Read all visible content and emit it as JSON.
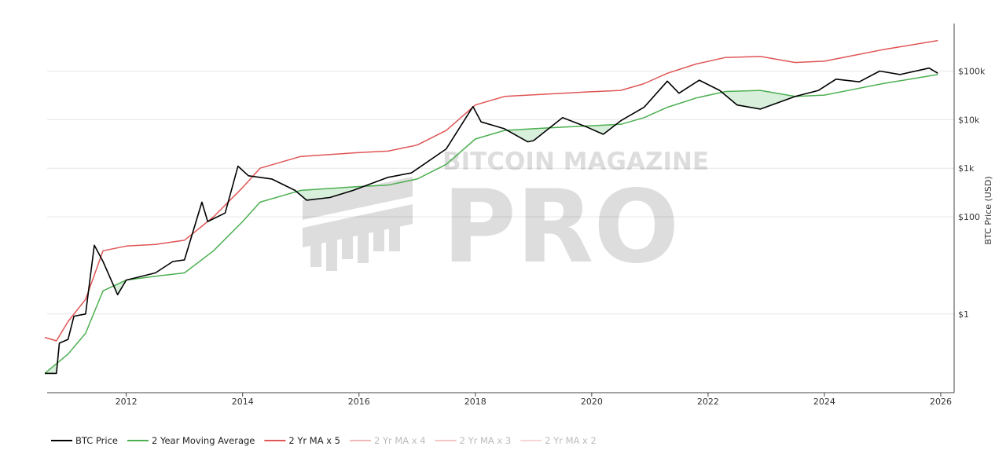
{
  "watermark": {
    "line1": "BITCOIN MAGAZINE",
    "line2": "PRO"
  },
  "chart_data": {
    "type": "line",
    "title": "",
    "xlabel": "",
    "ylabel": "BTC Price (USD)",
    "yscale": "log",
    "xlim": [
      2010.64,
      2026.23
    ],
    "ylim": [
      0.024,
      950000
    ],
    "grid": "horizontal",
    "legend_placement": "bottom-left",
    "x_ticks": [
      {
        "v": 2012,
        "label": "2012"
      },
      {
        "v": 2014,
        "label": "2014"
      },
      {
        "v": 2016,
        "label": "2016"
      },
      {
        "v": 2018,
        "label": "2018"
      },
      {
        "v": 2020,
        "label": "2020"
      },
      {
        "v": 2022,
        "label": "2022"
      },
      {
        "v": 2024,
        "label": "2024"
      },
      {
        "v": 2026,
        "label": "2026"
      }
    ],
    "y_ticks": [
      {
        "v": 1,
        "label": "$1"
      },
      {
        "v": 100,
        "label": "$100"
      },
      {
        "v": 1000,
        "label": "$1k"
      },
      {
        "v": 10000,
        "label": "$10k"
      },
      {
        "v": 100000,
        "label": "$100k"
      }
    ],
    "shade_below_ma_color": "#d8efdc",
    "series": [
      {
        "name": "BTC Price",
        "color": "#000000",
        "visible": true,
        "x": [
          2010.6,
          2010.8,
          2010.85,
          2011.0,
          2011.1,
          2011.3,
          2011.45,
          2011.6,
          2011.85,
          2012.0,
          2012.5,
          2012.8,
          2013.0,
          2013.3,
          2013.4,
          2013.7,
          2013.92,
          2014.1,
          2014.5,
          2014.9,
          2015.1,
          2015.5,
          2015.9,
          2016.5,
          2016.9,
          2017.5,
          2017.96,
          2018.1,
          2018.5,
          2018.9,
          2019.0,
          2019.5,
          2019.9,
          2020.2,
          2020.5,
          2020.9,
          2021.3,
          2021.5,
          2021.85,
          2022.2,
          2022.5,
          2022.9,
          2023.5,
          2023.9,
          2024.2,
          2024.6,
          2024.95,
          2025.3,
          2025.8,
          2025.95
        ],
        "y": [
          0.06,
          0.06,
          0.25,
          0.3,
          0.9,
          1.0,
          26,
          12,
          2.5,
          5,
          7,
          12,
          13,
          200,
          80,
          120,
          1100,
          700,
          600,
          350,
          220,
          250,
          350,
          650,
          800,
          2500,
          18600,
          9000,
          6500,
          3500,
          3700,
          11000,
          7200,
          5000,
          9500,
          18000,
          62000,
          35000,
          65000,
          40000,
          20000,
          16500,
          30000,
          40000,
          68000,
          60000,
          100000,
          85000,
          115000,
          90000
        ]
      },
      {
        "name": "2 Year Moving Average",
        "color": "#4caf50",
        "visible": true,
        "x": [
          2010.6,
          2011.0,
          2011.3,
          2011.6,
          2012.0,
          2012.5,
          2013.0,
          2013.5,
          2014.0,
          2014.3,
          2015.0,
          2016.0,
          2016.5,
          2017.0,
          2017.5,
          2018.0,
          2018.5,
          2019.0,
          2019.5,
          2020.0,
          2020.5,
          2020.9,
          2021.3,
          2021.8,
          2022.3,
          2022.9,
          2023.5,
          2024.0,
          2024.5,
          2025.0,
          2025.95
        ],
        "y": [
          0.06,
          0.15,
          0.4,
          3,
          5,
          6,
          7,
          20,
          80,
          200,
          350,
          420,
          450,
          600,
          1200,
          4000,
          6000,
          6500,
          7000,
          7500,
          8000,
          11000,
          18000,
          28000,
          38000,
          40000,
          30000,
          32000,
          42000,
          55000,
          85000
        ]
      },
      {
        "name": "2 Yr MA x 5",
        "color": "#e05555",
        "visible": true,
        "x": [
          2010.6,
          2010.8,
          2011.0,
          2011.3,
          2011.6,
          2012.0,
          2012.5,
          2013.0,
          2013.5,
          2014.0,
          2014.3,
          2015.0,
          2016.0,
          2016.5,
          2017.0,
          2017.5,
          2018.0,
          2018.5,
          2019.0,
          2019.5,
          2020.0,
          2020.5,
          2020.9,
          2021.3,
          2021.8,
          2022.3,
          2022.9,
          2023.5,
          2024.0,
          2024.5,
          2025.0,
          2025.95
        ],
        "y": [
          0.33,
          0.28,
          0.7,
          2,
          20,
          25,
          27,
          33,
          100,
          400,
          1000,
          1750,
          2100,
          2250,
          3000,
          6000,
          20000,
          30000,
          32500,
          35000,
          37500,
          40000,
          55000,
          90000,
          140000,
          190000,
          200000,
          150000,
          160000,
          210000,
          275000,
          425000
        ]
      },
      {
        "name": "2 Yr MA x 4",
        "color": "#f2b8b8",
        "visible": false
      },
      {
        "name": "2 Yr MA x 3",
        "color": "#f4c6c6",
        "visible": false
      },
      {
        "name": "2 Yr MA x 2",
        "color": "#f7d6d6",
        "visible": false
      }
    ]
  }
}
